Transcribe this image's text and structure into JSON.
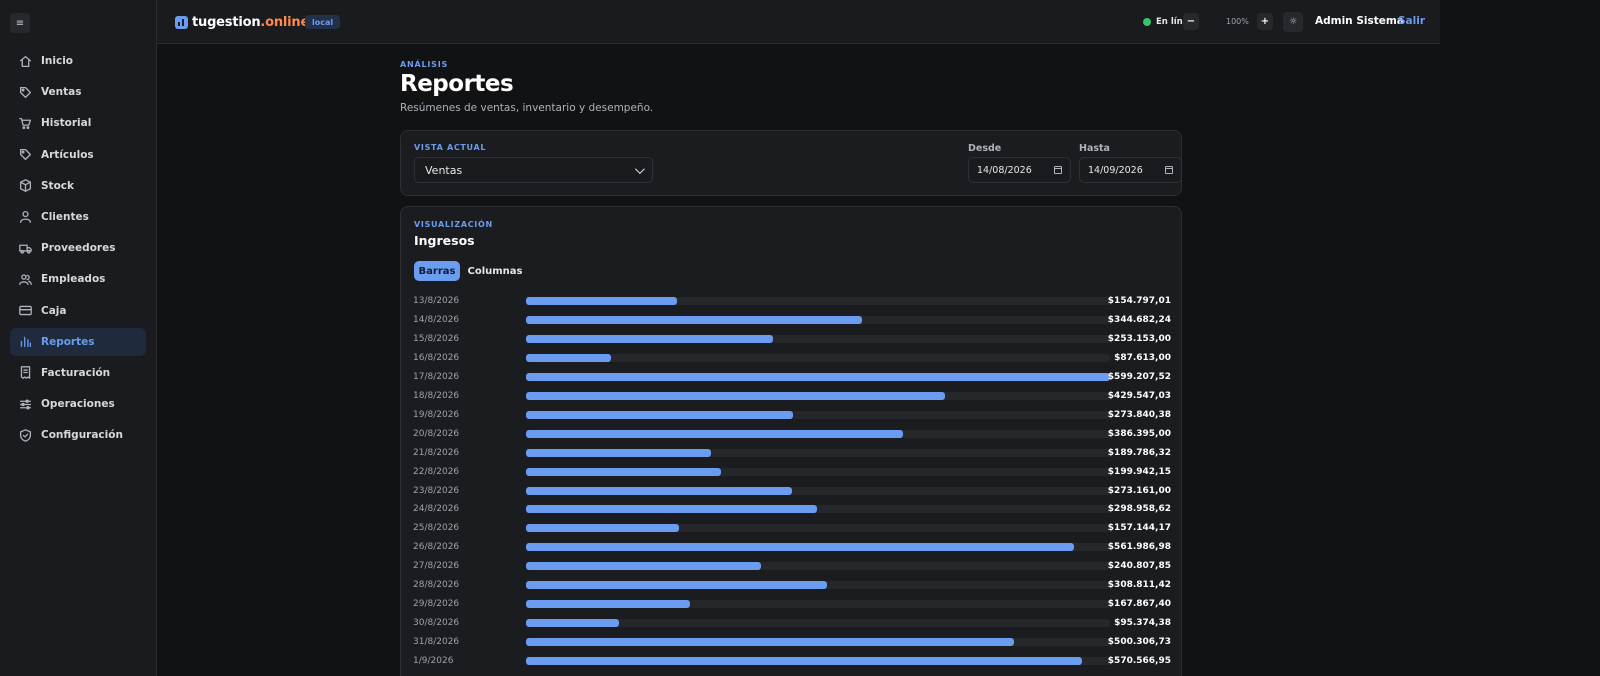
{
  "app": {
    "brand": "tugestion",
    "brand_tld": ".online",
    "env_badge": "local",
    "status": "En línea",
    "zoom": "100%",
    "zoom_out": "−",
    "zoom_in": "+",
    "theme_glyph": "☼",
    "sidebar_toggle": "≡",
    "user": "Admin Sistema",
    "logout": "Salir",
    "accent_color": "#6a9cf0",
    "status_color": "#34c46b"
  },
  "sidebar": {
    "items": [
      {
        "id": "inicio",
        "label": "Inicio",
        "icon": "home-icon",
        "active": false
      },
      {
        "id": "ventas",
        "label": "Ventas",
        "icon": "tag-icon",
        "active": false
      },
      {
        "id": "historial",
        "label": "Historial",
        "icon": "cart-icon",
        "active": false
      },
      {
        "id": "articulos",
        "label": "Artículos",
        "icon": "tag-icon",
        "active": false
      },
      {
        "id": "stock",
        "label": "Stock",
        "icon": "box-icon",
        "active": false
      },
      {
        "id": "clientes",
        "label": "Clientes",
        "icon": "user-icon",
        "active": false
      },
      {
        "id": "proveedores",
        "label": "Proveedores",
        "icon": "truck-icon",
        "active": false
      },
      {
        "id": "empleados",
        "label": "Empleados",
        "icon": "users-icon",
        "active": false
      },
      {
        "id": "caja",
        "label": "Caja",
        "icon": "card-icon",
        "active": false
      },
      {
        "id": "reportes",
        "label": "Reportes",
        "icon": "bar-chart-icon",
        "active": true
      },
      {
        "id": "facturacion",
        "label": "Facturación",
        "icon": "receipt-icon",
        "active": false
      },
      {
        "id": "operaciones",
        "label": "Operaciones",
        "icon": "sliders-icon",
        "active": false
      },
      {
        "id": "configuracion",
        "label": "Configuración",
        "icon": "shield-icon",
        "active": false
      }
    ]
  },
  "page": {
    "eyebrow": "ANÁLISIS",
    "title": "Reportes",
    "subtitle": "Resúmenes de ventas, inventario y desempeño."
  },
  "filters": {
    "view_label": "VISTA ACTUAL",
    "view_value": "Ventas",
    "from_label": "Desde",
    "from_value": "14/08/2026",
    "to_label": "Hasta",
    "to_value": "14/09/2026"
  },
  "visualization": {
    "eyebrow": "VISUALIZACIÓN",
    "title": "Ingresos",
    "tabs": [
      {
        "label": "Barras",
        "active": true
      },
      {
        "label": "Columnas",
        "active": false
      }
    ]
  },
  "chart_data": {
    "type": "bar",
    "orientation": "horizontal",
    "title": "Ingresos",
    "xmax": 599207.52,
    "categories": [
      "13/8/2026",
      "14/8/2026",
      "15/8/2026",
      "16/8/2026",
      "17/8/2026",
      "18/8/2026",
      "19/8/2026",
      "20/8/2026",
      "21/8/2026",
      "22/8/2026",
      "23/8/2026",
      "24/8/2026",
      "25/8/2026",
      "26/8/2026",
      "27/8/2026",
      "28/8/2026",
      "29/8/2026",
      "30/8/2026",
      "31/8/2026",
      "1/9/2026"
    ],
    "values": [
      154797.01,
      344682.24,
      253153.0,
      87613.0,
      599207.52,
      429547.03,
      273840.38,
      386395.0,
      189786.32,
      199942.15,
      273161.0,
      298958.62,
      157144.17,
      561986.98,
      240807.85,
      308811.42,
      167867.4,
      95374.38,
      500306.73,
      570566.95
    ],
    "value_labels": [
      "$154.797,01",
      "$344.682,24",
      "$253.153,00",
      "$87.613,00",
      "$599.207,52",
      "$429.547,03",
      "$273.840,38",
      "$386.395,00",
      "$189.786,32",
      "$199.942,15",
      "$273.161,00",
      "$298.958,62",
      "$157.144,17",
      "$561.986,98",
      "$240.807,85",
      "$308.811,42",
      "$167.867,40",
      "$95.374,38",
      "$500.306,73",
      "$570.566,95"
    ]
  }
}
